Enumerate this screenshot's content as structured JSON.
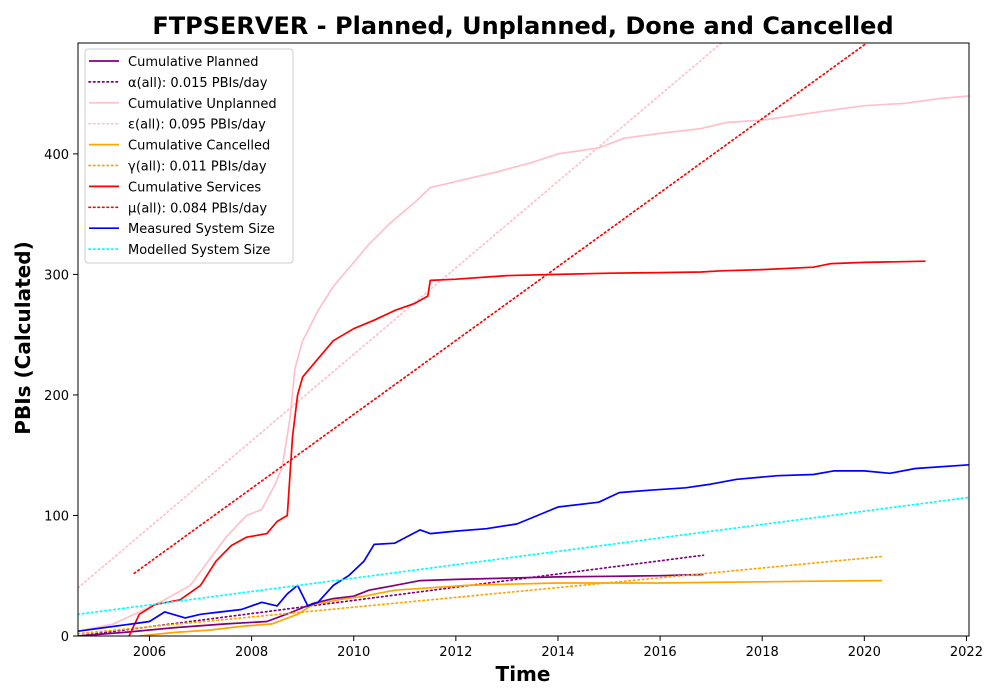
{
  "chart_data": {
    "type": "line",
    "title": "FTPSERVER - Planned, Unplanned, Done  and Cancelled",
    "xlabel": "Time",
    "ylabel": "PBIs (Calculated)",
    "xlim": [
      2004.6,
      2022.05
    ],
    "ylim": [
      0,
      492
    ],
    "xticks": [
      2006,
      2008,
      2010,
      2012,
      2014,
      2016,
      2018,
      2020,
      2022
    ],
    "yticks": [
      0,
      100,
      200,
      300,
      400
    ],
    "grid": false,
    "legend_position": "top-left",
    "series": [
      {
        "name": "Cumulative Planned",
        "color": "#800080",
        "style": "solid",
        "points": [
          [
            2004.6,
            0
          ],
          [
            2005.5,
            3
          ],
          [
            2006.5,
            7
          ],
          [
            2007.5,
            10
          ],
          [
            2008.3,
            12
          ],
          [
            2008.8,
            20
          ],
          [
            2009.2,
            27
          ],
          [
            2009.6,
            31
          ],
          [
            2010.0,
            33
          ],
          [
            2010.3,
            38
          ],
          [
            2010.8,
            42
          ],
          [
            2011.3,
            46
          ],
          [
            2012.0,
            47
          ],
          [
            2013.0,
            48
          ],
          [
            2014.0,
            49
          ],
          [
            2015.0,
            49.5
          ],
          [
            2016.0,
            50
          ],
          [
            2016.85,
            51
          ]
        ]
      },
      {
        "name": "α(all): 0.015 PBIs/day",
        "color": "#800080",
        "style": "dotted",
        "points": [
          [
            2004.6,
            0
          ],
          [
            2016.85,
            67
          ]
        ]
      },
      {
        "name": "Cumulative Unplanned",
        "color": "#ffc0cb",
        "style": "solid",
        "points": [
          [
            2004.6,
            4
          ],
          [
            2005.3,
            10
          ],
          [
            2005.8,
            20
          ],
          [
            2006.3,
            30
          ],
          [
            2006.8,
            42
          ],
          [
            2007.2,
            65
          ],
          [
            2007.5,
            82
          ],
          [
            2007.9,
            100
          ],
          [
            2008.2,
            105
          ],
          [
            2008.45,
            125
          ],
          [
            2008.6,
            140
          ],
          [
            2008.75,
            180
          ],
          [
            2008.85,
            222
          ],
          [
            2009.0,
            245
          ],
          [
            2009.3,
            270
          ],
          [
            2009.6,
            290
          ],
          [
            2010.0,
            310
          ],
          [
            2010.3,
            325
          ],
          [
            2010.7,
            342
          ],
          [
            2011.2,
            360
          ],
          [
            2011.5,
            372
          ],
          [
            2012.0,
            377
          ],
          [
            2012.8,
            385
          ],
          [
            2013.5,
            393
          ],
          [
            2014.0,
            400
          ],
          [
            2014.8,
            405
          ],
          [
            2015.3,
            413
          ],
          [
            2016.0,
            417
          ],
          [
            2016.8,
            421
          ],
          [
            2017.3,
            426
          ],
          [
            2018.0,
            428
          ],
          [
            2018.5,
            431
          ],
          [
            2019.3,
            436
          ],
          [
            2020.0,
            440
          ],
          [
            2020.8,
            442
          ],
          [
            2021.5,
            446
          ],
          [
            2022.05,
            448
          ]
        ]
      },
      {
        "name": "ε(all): 0.095 PBIs/day",
        "color": "#ffc0cb",
        "style": "dotted",
        "points": [
          [
            2004.6,
            40
          ],
          [
            2017.2,
            492
          ]
        ]
      },
      {
        "name": "Cumulative Cancelled",
        "color": "#ffa500",
        "style": "solid",
        "points": [
          [
            2005.8,
            0
          ],
          [
            2006.5,
            3
          ],
          [
            2007.2,
            5
          ],
          [
            2007.8,
            8
          ],
          [
            2008.4,
            10
          ],
          [
            2008.9,
            18
          ],
          [
            2009.2,
            26
          ],
          [
            2009.7,
            30
          ],
          [
            2010.2,
            33
          ],
          [
            2010.8,
            38
          ],
          [
            2011.5,
            40
          ],
          [
            2012.2,
            42
          ],
          [
            2013.0,
            43
          ],
          [
            2014.0,
            44
          ],
          [
            2015.0,
            44
          ],
          [
            2016.0,
            44
          ],
          [
            2017.0,
            44.5
          ],
          [
            2018.0,
            45
          ],
          [
            2019.0,
            45.5
          ],
          [
            2020.35,
            46
          ]
        ]
      },
      {
        "name": "γ(all): 0.011 PBIs/day",
        "color": "#ffa500",
        "style": "dotted",
        "points": [
          [
            2004.6,
            2
          ],
          [
            2020.35,
            66
          ]
        ]
      },
      {
        "name": "Cumulative Services",
        "color": "#ff0000",
        "style": "solid",
        "points": [
          [
            2005.6,
            0
          ],
          [
            2005.8,
            18
          ],
          [
            2006.1,
            26
          ],
          [
            2006.6,
            30
          ],
          [
            2007.0,
            42
          ],
          [
            2007.3,
            62
          ],
          [
            2007.6,
            75
          ],
          [
            2007.9,
            82
          ],
          [
            2008.3,
            85
          ],
          [
            2008.5,
            95
          ],
          [
            2008.7,
            100
          ],
          [
            2008.8,
            165
          ],
          [
            2008.9,
            200
          ],
          [
            2009.0,
            215
          ],
          [
            2009.2,
            225
          ],
          [
            2009.6,
            245
          ],
          [
            2010.0,
            255
          ],
          [
            2010.4,
            262
          ],
          [
            2010.8,
            270
          ],
          [
            2011.2,
            276
          ],
          [
            2011.45,
            282
          ],
          [
            2011.5,
            295
          ],
          [
            2012.0,
            296
          ],
          [
            2013.0,
            299
          ],
          [
            2014.0,
            300
          ],
          [
            2015.0,
            301
          ],
          [
            2016.0,
            301.5
          ],
          [
            2016.8,
            302
          ],
          [
            2017.2,
            303
          ],
          [
            2018.0,
            304
          ],
          [
            2019.0,
            306
          ],
          [
            2019.35,
            309
          ],
          [
            2020.0,
            310
          ],
          [
            2021.2,
            311
          ]
        ]
      },
      {
        "name": "μ(all): 0.084 PBIs/day",
        "color": "#ff0000",
        "style": "dotted",
        "points": [
          [
            2005.7,
            52
          ],
          [
            2020.05,
            492
          ]
        ]
      },
      {
        "name": "Measured System Size",
        "color": "#0000ff",
        "style": "solid",
        "points": [
          [
            2004.6,
            4
          ],
          [
            2005.3,
            8
          ],
          [
            2006.0,
            12
          ],
          [
            2006.3,
            20
          ],
          [
            2006.7,
            15
          ],
          [
            2007.0,
            18
          ],
          [
            2007.4,
            20
          ],
          [
            2007.8,
            22
          ],
          [
            2008.2,
            28
          ],
          [
            2008.5,
            25
          ],
          [
            2008.7,
            35
          ],
          [
            2008.9,
            42
          ],
          [
            2009.1,
            25
          ],
          [
            2009.3,
            28
          ],
          [
            2009.6,
            42
          ],
          [
            2009.9,
            50
          ],
          [
            2010.2,
            62
          ],
          [
            2010.4,
            76
          ],
          [
            2010.8,
            77
          ],
          [
            2011.3,
            88
          ],
          [
            2011.5,
            85
          ],
          [
            2012.0,
            87
          ],
          [
            2012.6,
            89
          ],
          [
            2013.2,
            93
          ],
          [
            2013.6,
            100
          ],
          [
            2014.0,
            107
          ],
          [
            2014.8,
            111
          ],
          [
            2015.2,
            119
          ],
          [
            2015.8,
            121
          ],
          [
            2016.5,
            123
          ],
          [
            2017.0,
            126
          ],
          [
            2017.5,
            130
          ],
          [
            2018.3,
            133
          ],
          [
            2019.0,
            134
          ],
          [
            2019.4,
            137
          ],
          [
            2020.0,
            137
          ],
          [
            2020.5,
            135
          ],
          [
            2021.0,
            139
          ],
          [
            2022.05,
            142
          ]
        ]
      },
      {
        "name": "Modelled System Size",
        "color": "#00ffff",
        "style": "dotted",
        "points": [
          [
            2004.6,
            18
          ],
          [
            2022.05,
            115
          ]
        ]
      }
    ]
  }
}
